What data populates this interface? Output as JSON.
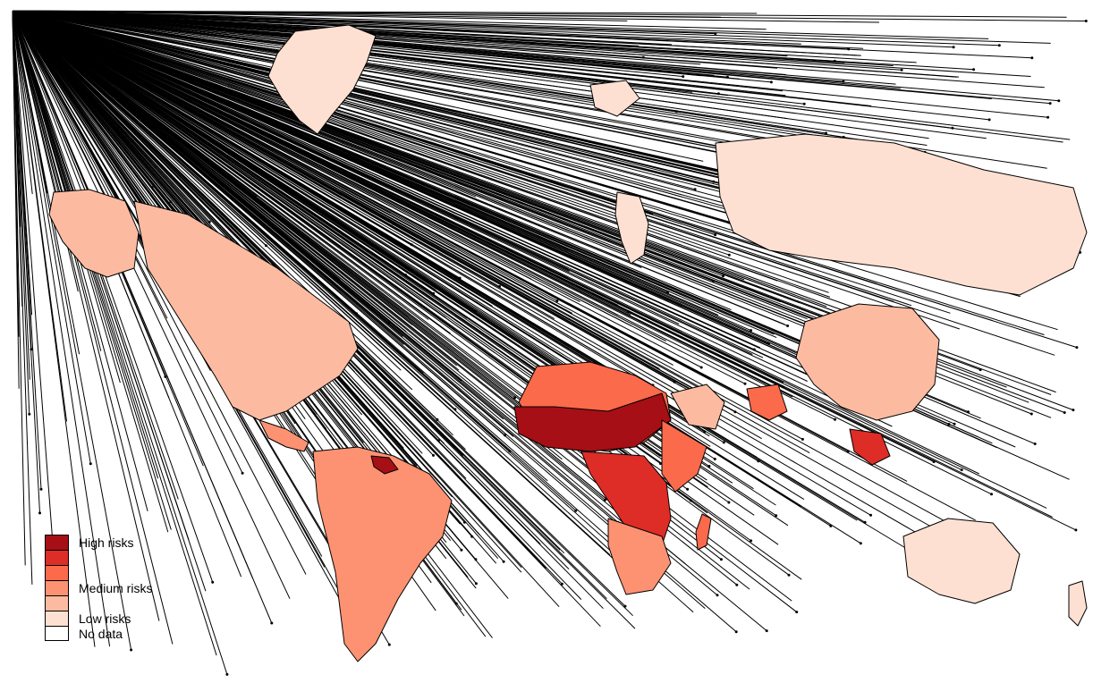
{
  "legend": {
    "items": [
      {
        "label": "High risks",
        "color": "#a50f15"
      },
      {
        "label": "",
        "color": "#de2d26"
      },
      {
        "label": "",
        "color": "#fb6a4a"
      },
      {
        "label": "Medium risks",
        "color": "#fc9272"
      },
      {
        "label": "",
        "color": "#fcbba1"
      },
      {
        "label": "Low risks",
        "color": "#fee0d2"
      },
      {
        "label": "No data",
        "color": "#ffffff"
      }
    ]
  }
}
